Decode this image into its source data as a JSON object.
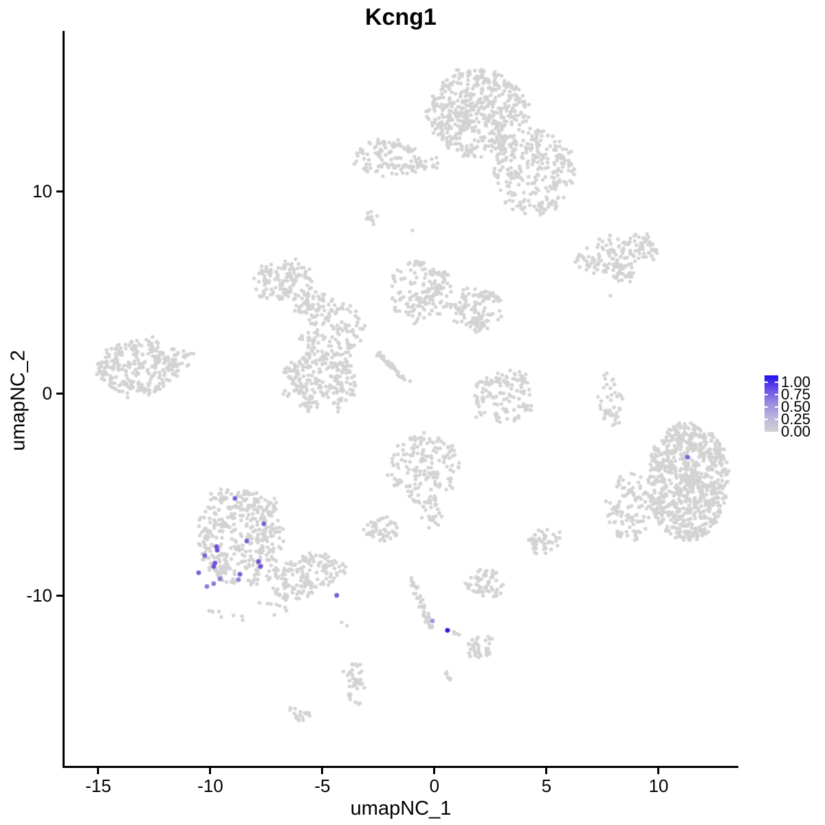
{
  "title": "Kcng1",
  "axes": {
    "xlabel": "umapNC_1",
    "ylabel": "umapNC_2",
    "x_tick_labels": [
      "-15",
      "-10",
      "-5",
      "0",
      "5",
      "10"
    ],
    "y_tick_labels": [
      "10",
      "0",
      "-10"
    ]
  },
  "legend": {
    "labels": [
      "1.00",
      "0.75",
      "0.50",
      "0.25",
      "0.00"
    ],
    "gradient_stops_bottom_to_top": [
      "#D3D2D3",
      "#BDB4DE",
      "#9C8CE0",
      "#6A50E8",
      "#2110EF"
    ]
  },
  "colors": {
    "background": "#FFFFFF",
    "axis": "#000000",
    "base_point": "#D3D3D3"
  },
  "chart_data": {
    "type": "scatter",
    "title": "Kcng1",
    "xlabel": "umapNC_1",
    "ylabel": "umapNC_2",
    "xlim": [
      -16.53,
      13.53
    ],
    "ylim": [
      -18.47,
      17.93
    ],
    "x_ticks": [
      -15,
      -10,
      -5,
      0,
      5,
      10
    ],
    "y_ticks": [
      10,
      0,
      -10
    ],
    "grid": false,
    "legend_position": "right",
    "color_scale": {
      "low_value": 0.0,
      "high_value": 1.0,
      "low_color": "#D3D3D3",
      "high_color": "#2110EF"
    },
    "clusters": [
      {
        "name": "top-center-main",
        "shape": "ellipse",
        "cx": 1.93,
        "cy": 13.84,
        "rx": 2.21,
        "ry": 2.18,
        "rot": 0,
        "n": 560
      },
      {
        "name": "top-center-right-arm",
        "shape": "ellipse",
        "cx": 4.48,
        "cy": 10.95,
        "rx": 1.84,
        "ry": 2.24,
        "rot": 0,
        "n": 270
      },
      {
        "name": "top-left-small",
        "shape": "ellipse",
        "cx": -2.09,
        "cy": 11.63,
        "rx": 1.44,
        "ry": 0.95,
        "rot": 0,
        "n": 115
      },
      {
        "name": "top-bridge",
        "shape": "ellipse",
        "cx": -0.21,
        "cy": 11.39,
        "rx": 0.67,
        "ry": 0.31,
        "rot": 0,
        "n": 14
      },
      {
        "name": "upper-right-elongated",
        "shape": "ellipse",
        "cx": 8.16,
        "cy": 6.87,
        "rx": 1.93,
        "ry": 0.85,
        "rot": -12,
        "n": 150
      },
      {
        "name": "upper-right-lip",
        "shape": "ellipse",
        "cx": 8.47,
        "cy": 5.75,
        "rx": 0.55,
        "ry": 0.34,
        "rot": 0,
        "n": 22
      },
      {
        "name": "tiny-dash-upper-mid",
        "shape": "ellipse",
        "cx": -2.88,
        "cy": 8.74,
        "rx": 0.37,
        "ry": 0.24,
        "rot": 45,
        "n": 10
      },
      {
        "name": "mid-left-blob",
        "shape": "ellipse",
        "cx": -6.75,
        "cy": 5.58,
        "rx": 1.38,
        "ry": 1.02,
        "rot": 0,
        "n": 130
      },
      {
        "name": "mid-left-tail",
        "shape": "ellipse",
        "cx": -5.52,
        "cy": 4.42,
        "rx": 0.8,
        "ry": 0.54,
        "rot": -30,
        "n": 40
      },
      {
        "name": "mid-center-chain",
        "shape": "ellipse",
        "cx": -0.61,
        "cy": 5.03,
        "rx": 1.41,
        "ry": 1.63,
        "rot": 0,
        "n": 160
      },
      {
        "name": "mid-right-blob",
        "shape": "ellipse",
        "cx": 1.84,
        "cy": 4.15,
        "rx": 1.13,
        "ry": 1.12,
        "rot": 0,
        "n": 115
      },
      {
        "name": "mid-branch-down",
        "shape": "ellipse",
        "cx": -4.6,
        "cy": 3.13,
        "rx": 1.44,
        "ry": 1.53,
        "rot": 0,
        "n": 130
      },
      {
        "name": "mid-lower-dense",
        "shape": "ellipse",
        "cx": -5.15,
        "cy": 0.65,
        "rx": 1.63,
        "ry": 1.63,
        "rot": 0,
        "n": 240
      },
      {
        "name": "diagonal-streak",
        "shape": "line",
        "x1": -2.55,
        "y1": 1.97,
        "x2": -1.17,
        "y2": 0.54,
        "jitter": 0.14,
        "n": 34
      },
      {
        "name": "far-left-cluster",
        "shape": "ellipse",
        "cx": -13.25,
        "cy": 1.33,
        "rx": 1.78,
        "ry": 1.39,
        "rot": 0,
        "n": 270
      },
      {
        "name": "far-left-arm",
        "shape": "ellipse",
        "cx": -11.5,
        "cy": 1.73,
        "rx": 0.92,
        "ry": 0.51,
        "rot": 0,
        "n": 38
      },
      {
        "name": "center-right-blob",
        "shape": "ellipse",
        "cx": 3.04,
        "cy": -0.2,
        "rx": 1.35,
        "ry": 1.39,
        "rot": 0,
        "n": 130
      },
      {
        "name": "thin-vertical-right",
        "shape": "ellipse",
        "cx": 7.88,
        "cy": -0.27,
        "rx": 0.49,
        "ry": 1.46,
        "rot": 0,
        "n": 42
      },
      {
        "name": "big-right-cluster",
        "shape": "ellipse",
        "cx": 11.29,
        "cy": -4.35,
        "rx": 1.81,
        "ry": 2.96,
        "rot": 0,
        "n": 800
      },
      {
        "name": "big-right-fringe",
        "shape": "ellipse",
        "cx": 8.71,
        "cy": -5.61,
        "rx": 1.1,
        "ry": 1.7,
        "rot": 0,
        "n": 110
      },
      {
        "name": "center-lower-blob",
        "shape": "ellipse",
        "cx": -0.49,
        "cy": -3.74,
        "rx": 1.63,
        "ry": 1.67,
        "rot": 0,
        "n": 165
      },
      {
        "name": "center-lower-tail",
        "shape": "ellipse",
        "cx": -0.21,
        "cy": -5.95,
        "rx": 0.52,
        "ry": 0.88,
        "rot": 0,
        "n": 28
      },
      {
        "name": "lower-left-main",
        "shape": "ellipse",
        "cx": -8.65,
        "cy": -7.07,
        "rx": 1.93,
        "ry": 2.48,
        "rot": 0,
        "n": 400
      },
      {
        "name": "lower-left-tail",
        "shape": "ellipse",
        "cx": -5.8,
        "cy": -9.05,
        "rx": 1.84,
        "ry": 1.05,
        "rot": -18,
        "n": 170
      },
      {
        "name": "lower-left-scatter-below",
        "shape": "ellipse",
        "cx": -8.34,
        "cy": -10.75,
        "rx": 1.9,
        "ry": 0.51,
        "rot": 0,
        "n": 16
      },
      {
        "name": "small-blob-left-of-center",
        "shape": "ellipse",
        "cx": -2.42,
        "cy": -6.8,
        "rx": 0.8,
        "ry": 0.65,
        "rot": 0,
        "n": 48
      },
      {
        "name": "bottom-center-chain",
        "shape": "line",
        "x1": -1.04,
        "y1": -9.12,
        "x2": -0.06,
        "y2": -12.01,
        "jitter": 0.17,
        "n": 40
      },
      {
        "name": "bottom-center-chain-right",
        "shape": "line",
        "x1": 0.64,
        "y1": -11.73,
        "x2": 1.1,
        "y2": -11.97,
        "jitter": 0.08,
        "n": 6
      },
      {
        "name": "small-blob-right-of-chain",
        "shape": "ellipse",
        "cx": 2.27,
        "cy": -9.39,
        "rx": 0.83,
        "ry": 0.71,
        "rot": 0,
        "n": 62
      },
      {
        "name": "small-blob-mid-right",
        "shape": "ellipse",
        "cx": 4.88,
        "cy": -7.28,
        "rx": 0.8,
        "ry": 0.65,
        "rot": -25,
        "n": 46
      },
      {
        "name": "small-blob-bottom",
        "shape": "ellipse",
        "cx": 2.06,
        "cy": -12.52,
        "rx": 0.71,
        "ry": 0.54,
        "rot": -20,
        "n": 40
      },
      {
        "name": "bottom-vertical-strand",
        "shape": "ellipse",
        "cx": -3.47,
        "cy": -14.39,
        "rx": 0.43,
        "ry": 1.16,
        "rot": 0,
        "n": 40
      },
      {
        "name": "bottom-left-dash",
        "shape": "ellipse",
        "cx": -5.98,
        "cy": -15.92,
        "rx": 0.58,
        "ry": 0.41,
        "rot": 30,
        "n": 18
      },
      {
        "name": "bottom-tiny-dash",
        "shape": "line",
        "x1": 0.4,
        "y1": -13.61,
        "x2": 0.74,
        "y2": -14.22,
        "jitter": 0.08,
        "n": 8
      },
      {
        "name": "isolated-singles",
        "shape": "points",
        "pts": [
          [
            7.85,
            4.83
          ],
          [
            -0.98,
            8.06
          ],
          [
            -4.14,
            -11.33
          ],
          [
            -3.9,
            -11.5
          ]
        ]
      }
    ],
    "highlighted_points": [
      {
        "x": -8.9,
        "y": -5.2,
        "value": 0.7,
        "color": "#7B5FD6"
      },
      {
        "x": -7.61,
        "y": -6.46,
        "value": 0.7,
        "color": "#7B5FD6"
      },
      {
        "x": -8.37,
        "y": -7.31,
        "value": 0.7,
        "color": "#7B5FD6"
      },
      {
        "x": -9.72,
        "y": -7.59,
        "value": 0.75,
        "color": "#6F52D4"
      },
      {
        "x": -9.69,
        "y": -7.76,
        "value": 0.75,
        "color": "#6F52D4"
      },
      {
        "x": -10.25,
        "y": -8.03,
        "value": 0.7,
        "color": "#7B5FD6"
      },
      {
        "x": -9.79,
        "y": -8.4,
        "value": 0.75,
        "color": "#6F52D4"
      },
      {
        "x": -9.85,
        "y": -8.57,
        "value": 0.75,
        "color": "#6F52D4"
      },
      {
        "x": -10.52,
        "y": -8.88,
        "value": 0.7,
        "color": "#7B5FD6"
      },
      {
        "x": -7.85,
        "y": -8.33,
        "value": 0.75,
        "color": "#6F52D4"
      },
      {
        "x": -7.76,
        "y": -8.57,
        "value": 0.75,
        "color": "#6F52D4"
      },
      {
        "x": -8.68,
        "y": -8.95,
        "value": 0.7,
        "color": "#7B5FD6"
      },
      {
        "x": -9.57,
        "y": -9.18,
        "value": 0.6,
        "color": "#8E7BDA"
      },
      {
        "x": -8.74,
        "y": -9.22,
        "value": 0.6,
        "color": "#8E7BDA"
      },
      {
        "x": -10.15,
        "y": -9.56,
        "value": 0.6,
        "color": "#8E7BDA"
      },
      {
        "x": -9.85,
        "y": -9.42,
        "value": 0.6,
        "color": "#8E7BDA"
      },
      {
        "x": -4.36,
        "y": -10.0,
        "value": 0.7,
        "color": "#7B5FD6"
      },
      {
        "x": -0.09,
        "y": -11.26,
        "value": 0.45,
        "color": "#A394E0"
      },
      {
        "x": 0.58,
        "y": -11.73,
        "value": 1.0,
        "color": "#2A16DC"
      },
      {
        "x": 11.29,
        "y": -3.16,
        "value": 0.7,
        "color": "#7B5FD6"
      }
    ]
  }
}
